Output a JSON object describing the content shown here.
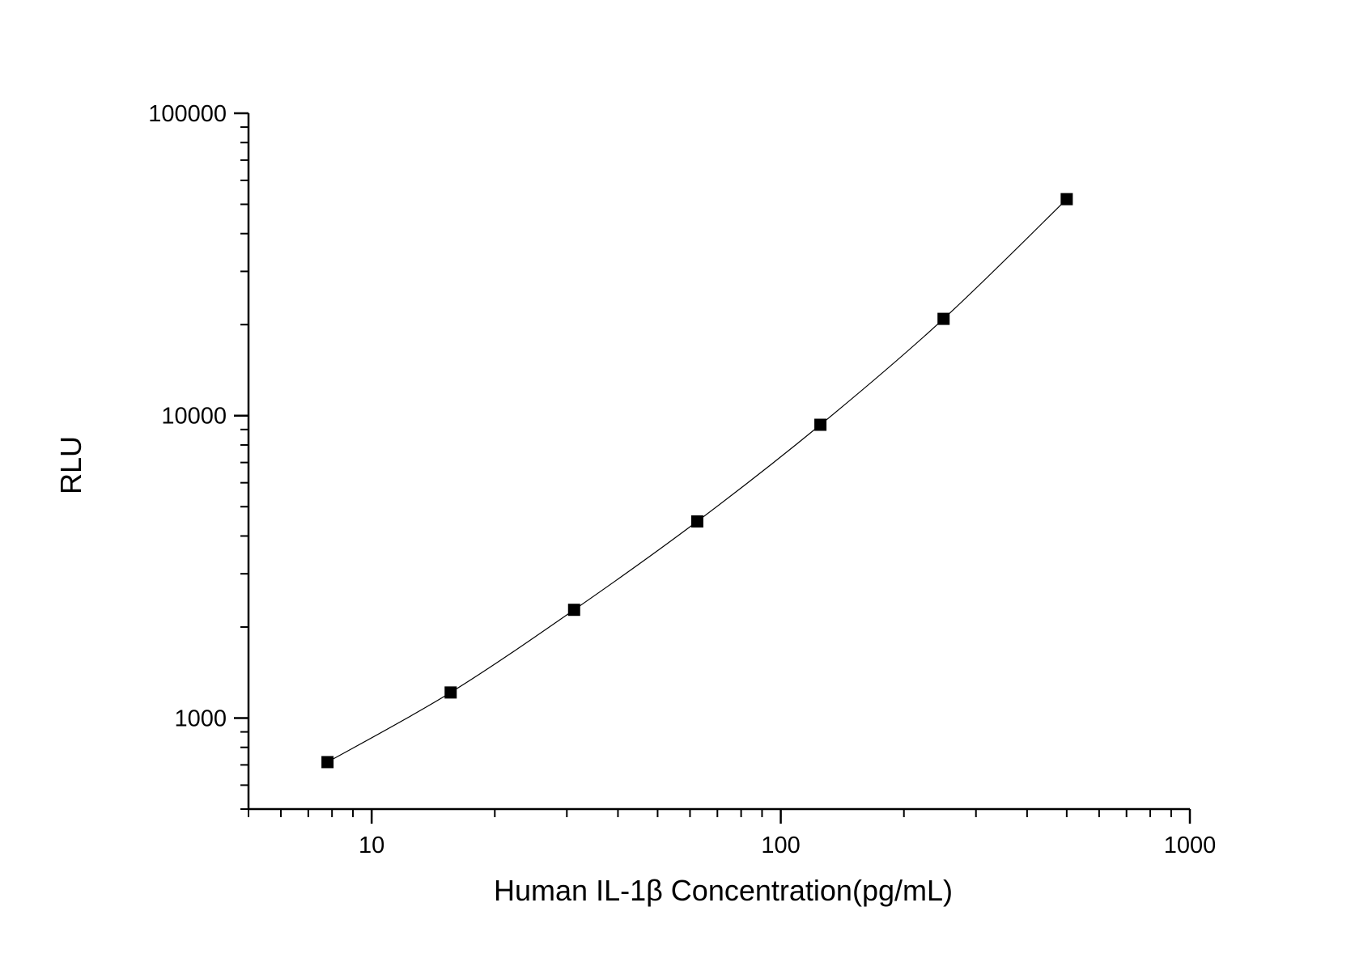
{
  "chart_data": {
    "type": "line",
    "xlabel": "Human IL-1β  Concentration(pg/mL)",
    "ylabel": "RLU",
    "x_scale": "log",
    "y_scale": "log",
    "xlim": [
      5,
      1000
    ],
    "ylim": [
      500,
      100000
    ],
    "x_ticks": [
      {
        "value": 10,
        "label": "10"
      },
      {
        "value": 100,
        "label": "100"
      },
      {
        "value": 1000,
        "label": "1000"
      }
    ],
    "y_ticks": [
      {
        "value": 1000,
        "label": "1000"
      },
      {
        "value": 10000,
        "label": "10000"
      },
      {
        "value": 100000,
        "label": "100000"
      }
    ],
    "grid": false,
    "legend": "none",
    "series": [
      {
        "marker": "square",
        "color": "#000000",
        "x": [
          7.8,
          15.6,
          31.25,
          62.5,
          125,
          250,
          500
        ],
        "y": [
          715,
          1215,
          2280,
          4470,
          9330,
          20900,
          52000
        ]
      }
    ]
  }
}
